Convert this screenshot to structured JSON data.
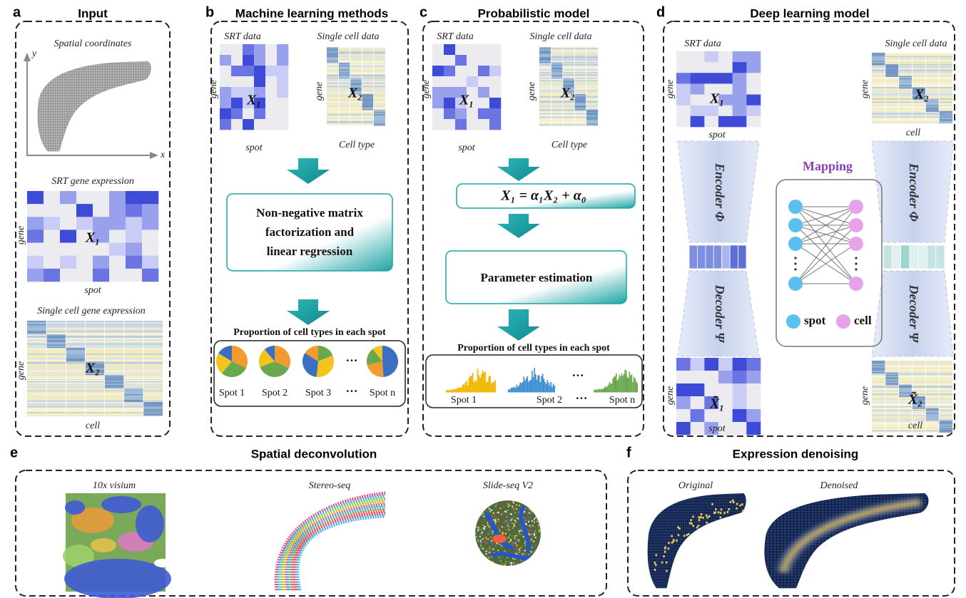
{
  "panels": {
    "a": {
      "letter": "a",
      "title": "Input",
      "spatial_label": "Spatial coordinates",
      "y_axis": "y",
      "x_axis": "x",
      "srt_label": "SRT gene expression",
      "srt_row": "gene",
      "srt_matrix": "X₁",
      "srt_col": "spot",
      "sc_label": "Single cell gene expression",
      "sc_row": "gene",
      "sc_matrix": "X₂",
      "sc_col": "cell"
    },
    "b": {
      "letter": "b",
      "title": "Machine learning methods",
      "srt_label": "SRT data",
      "sc_label": "Single cell  data",
      "srt_row": "gene",
      "srt_matrix": "X₁",
      "srt_col": "spot",
      "sc_row": "gene",
      "sc_matrix": "X₂",
      "sc_col": "Cell type",
      "method": [
        "Non-negative matrix",
        "factorization and",
        "linear regression"
      ],
      "result_title": "Proportion of cell types in each spot",
      "spots": [
        "Spot 1",
        "Spot 2",
        "Spot 3",
        "Spot n"
      ],
      "ellipsis": [
        "···",
        "···"
      ]
    },
    "c": {
      "letter": "c",
      "title": "Probabilistic model",
      "srt_label": "SRT data",
      "sc_label": "Single cell  data",
      "srt_row": "gene",
      "srt_matrix": "X₁",
      "srt_col": "spot",
      "sc_row": "gene",
      "sc_matrix": "X₂",
      "sc_col": "Cell type",
      "formula": "X₁ = α₁X₂ + α₀",
      "method": "Parameter estimation",
      "result_title": "Proportion of cell types in each spot",
      "spots": [
        "Spot 1",
        "Spot 2",
        "Spot n"
      ],
      "ellipsis": [
        "···",
        "···"
      ]
    },
    "d": {
      "letter": "d",
      "title": "Deep learning model",
      "srt_label": "SRT data",
      "sc_label": "Single cell  data",
      "srt_row": "gene",
      "srt_matrix": "X₁",
      "srt_col": "spot",
      "sc_row": "gene",
      "sc_matrix": "X₂",
      "sc_col": "cell",
      "encoder": [
        "Encoder Φ",
        "Encoder Φ"
      ],
      "decoder": [
        "Decoder Ψ",
        "Decoder Ψ"
      ],
      "mapping": "Mapping",
      "legend": [
        "spot",
        "cell"
      ],
      "recon_row": [
        "gene",
        "gene"
      ],
      "recon_matrix": [
        "X̃₁",
        "X̃₂"
      ],
      "recon_col": [
        "spot",
        "cell"
      ]
    },
    "e": {
      "letter": "e",
      "title": "Spatial deconvolution",
      "samples": [
        "10x visium",
        "Stereo-seq",
        "Slide-seq V2"
      ]
    },
    "f": {
      "letter": "f",
      "title": "Expression denoising",
      "samples": [
        "Original",
        "Denoised"
      ]
    }
  }
}
